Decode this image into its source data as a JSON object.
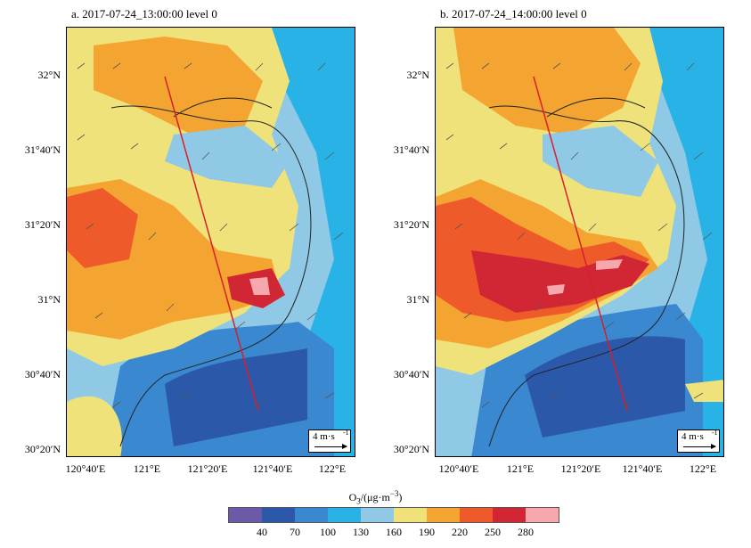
{
  "panels": [
    {
      "title": "a. 2017-07-24_13:00:00 level 0",
      "scale_label": "4 m·s"
    },
    {
      "title": "b. 2017-07-24_14:00:00 level 0",
      "scale_label": "4 m·s"
    }
  ],
  "axes": {
    "y_labels": [
      "32°N",
      "31°40′N",
      "31°20′N",
      "31°N",
      "30°40′N",
      "30°20′N"
    ],
    "x_labels": [
      "120°40′E",
      "121°E",
      "121°20′E",
      "121°40′E",
      "122°E"
    ]
  },
  "colorbar": {
    "title": "O3/(μg·m−3)",
    "ticks": [
      "40",
      "70",
      "100",
      "130",
      "160",
      "190",
      "220",
      "250",
      "280"
    ],
    "colors": [
      "#6a5aa8",
      "#2b58a8",
      "#3a88cf",
      "#28b2e6",
      "#8fc9e6",
      "#f0e27a",
      "#f4a431",
      "#ef5a2b",
      "#d12633",
      "#f7a8ad"
    ]
  },
  "section_line_color": "#d81f2a",
  "wind_vector_color": "#555555"
}
